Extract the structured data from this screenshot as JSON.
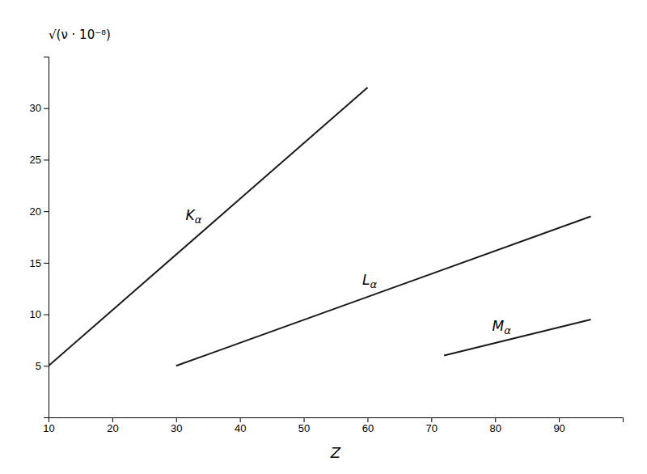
{
  "chart_data": {
    "type": "line",
    "xlabel": "Z",
    "ylabel": "√(ν · 10⁻⁸)",
    "series": [
      {
        "name": "Kα",
        "color": "#1a1a1a",
        "x": [
          10,
          60
        ],
        "values": [
          5,
          32
        ]
      },
      {
        "name": "Lα",
        "color": "#1a1a1a",
        "x": [
          30,
          95
        ],
        "values": [
          5,
          19.5
        ]
      },
      {
        "name": "Mα",
        "color": "#1a1a1a",
        "x": [
          72,
          95
        ],
        "values": [
          6.0,
          9.5
        ]
      }
    ],
    "xlim": [
      10,
      100
    ],
    "ylim": [
      0,
      35
    ],
    "xticks": [
      10,
      20,
      30,
      40,
      50,
      60,
      70,
      80,
      90
    ],
    "yticks": [
      5,
      10,
      15,
      20,
      25,
      30
    ],
    "grid": false
  }
}
